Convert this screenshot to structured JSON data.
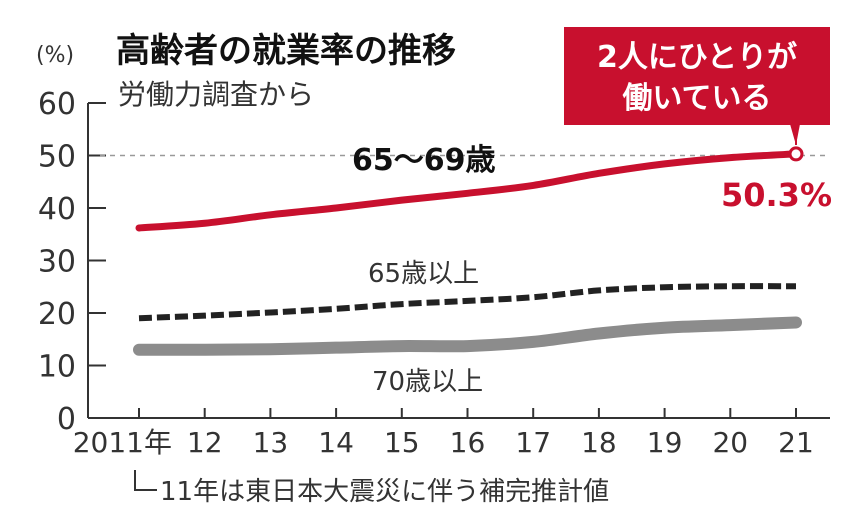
{
  "chart_data": {
    "type": "line",
    "title": "高齢者の就業率の推移",
    "subtitle": "労働力調査から",
    "ylabel": "(%)",
    "xlabel": "",
    "ylim": [
      0,
      60
    ],
    "yticks": [
      0,
      10,
      20,
      30,
      40,
      50,
      60
    ],
    "x_tick_labels": [
      "2011年",
      "12",
      "13",
      "14",
      "15",
      "16",
      "17",
      "18",
      "19",
      "20",
      "21"
    ],
    "x": [
      2011,
      2012,
      2013,
      2014,
      2015,
      2016,
      2017,
      2018,
      2019,
      2020,
      2021
    ],
    "grid": false,
    "reference_line": {
      "y": 50,
      "style": "dotted"
    },
    "series": [
      {
        "name": "65〜69歳",
        "style": "solid-red-thick",
        "color": "#c8102e",
        "values": [
          36.2,
          37.1,
          38.7,
          40.0,
          41.5,
          42.8,
          44.3,
          46.6,
          48.4,
          49.6,
          50.3
        ]
      },
      {
        "name": "65歳以上",
        "style": "dashed-black",
        "color": "#222222",
        "values": [
          19.0,
          19.5,
          20.1,
          20.8,
          21.7,
          22.3,
          23.0,
          24.3,
          24.9,
          25.1,
          25.1
        ]
      },
      {
        "name": "70歳以上",
        "style": "solid-gray-thick",
        "color": "#8c8c8c",
        "values": [
          13.0,
          13.0,
          13.1,
          13.4,
          13.7,
          13.7,
          14.5,
          16.1,
          17.2,
          17.7,
          18.2
        ]
      }
    ],
    "annotations": {
      "callout": "2人にひとりが\n働いている",
      "callout_line1": "2人にひとりが",
      "callout_line2": "働いている",
      "endpoint_value": "50.3%",
      "footnote": "11年は東日本大震災に伴う補完推計値"
    },
    "legend_position": "inline"
  },
  "colors": {
    "accent": "#c8102e",
    "gray": "#8c8c8c",
    "black": "#222222"
  }
}
